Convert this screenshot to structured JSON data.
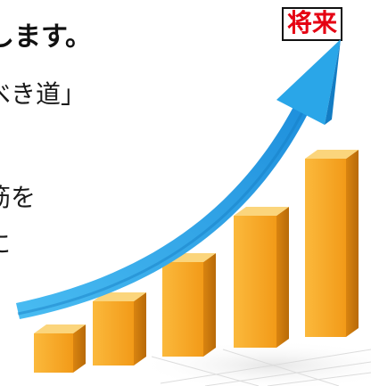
{
  "heading": {
    "text": "します。"
  },
  "badge": {
    "text": "将来"
  },
  "body": {
    "line1": "べき道」",
    "line2": "筋を",
    "line3": "に"
  },
  "illustration": {
    "icon": "rising-bar-chart-with-arrow",
    "bar_levels": [
      0.22,
      0.36,
      0.53,
      0.74,
      1.0
    ],
    "colors": {
      "bar": "#f5a425",
      "bar_dark": "#c9770c",
      "bar_top": "#fbd57c",
      "arrow": "#2aa6e8",
      "arrow_dark": "#137cc3"
    }
  }
}
